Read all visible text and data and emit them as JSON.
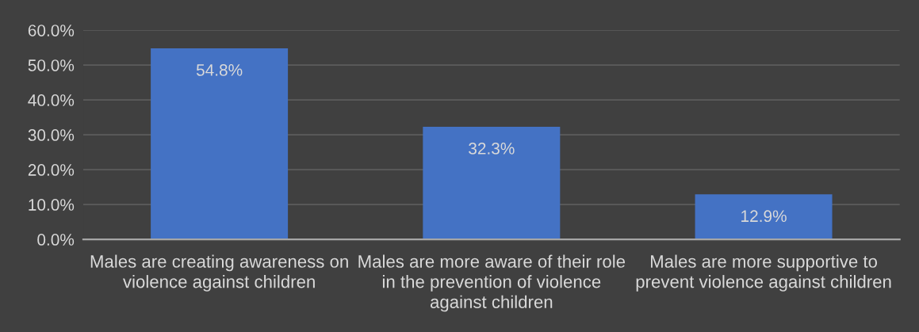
{
  "chart_data": {
    "type": "bar",
    "categories": [
      "Males are creating awareness on violence against children",
      "Males are more aware of their role in the prevention of violence against children",
      "Males are more supportive to prevent violence against children"
    ],
    "values": [
      54.8,
      32.3,
      12.9
    ],
    "color": "#4472c4",
    "value_labels": [
      "54.8%",
      "32.3%",
      "12.9%"
    ],
    "ylim": [
      0,
      60
    ],
    "yticks": [
      {
        "value": 0,
        "label": "0.0%"
      },
      {
        "value": 10,
        "label": "10.0%"
      },
      {
        "value": 20,
        "label": "20.0%"
      },
      {
        "value": 30,
        "label": "30.0%"
      },
      {
        "value": 40,
        "label": "40.0%"
      },
      {
        "value": 50,
        "label": "50.0%"
      },
      {
        "value": 60,
        "label": "60.0%"
      }
    ],
    "grid": "y",
    "legend": false
  }
}
